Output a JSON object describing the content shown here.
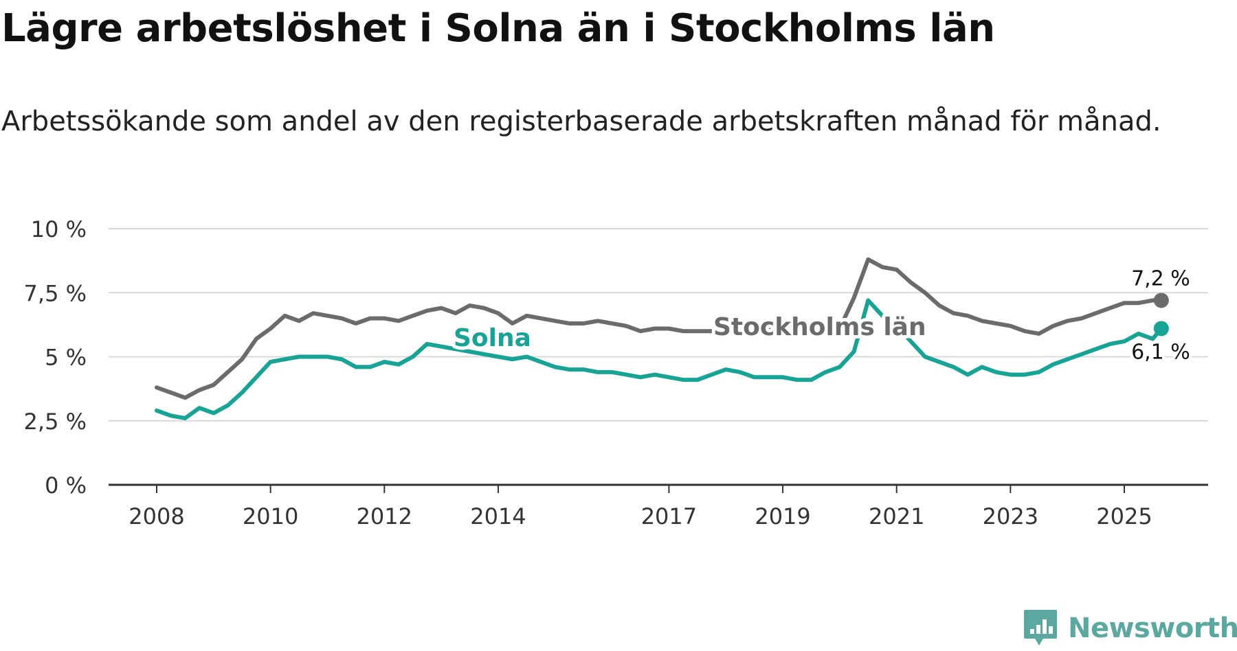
{
  "title": "Lägre arbetslöshet i Solna än i Stockholms län",
  "subtitle": "Arbetssökande som andel av den registerbaserade arbetskraften månad för månad.",
  "brand": {
    "name": "Newsworthy",
    "icon": "newsworthy-logo-icon",
    "color": "#5aa8a0"
  },
  "chart_data": {
    "type": "line",
    "title": "Lägre arbetslöshet i Solna än i Stockholms län",
    "subtitle": "Arbetssökande som andel av den registerbaserade arbetskraften månad för månad.",
    "xlabel": "",
    "ylabel": "",
    "xlim": [
      2007.9,
      2026.5
    ],
    "ylim": [
      0,
      10
    ],
    "grid": true,
    "x_ticks": [
      2008,
      2010,
      2012,
      2014,
      2017,
      2019,
      2021,
      2023,
      2025
    ],
    "x_tick_labels": [
      "2008",
      "2010",
      "2012",
      "2014",
      "2017",
      "2019",
      "2021",
      "2023",
      "2025"
    ],
    "y_ticks": [
      0,
      2.5,
      5,
      7.5,
      10
    ],
    "y_tick_labels": [
      "0 %",
      "2,5 %",
      "5 %",
      "7,5 %",
      "10 %"
    ],
    "series": [
      {
        "name": "Stockholms län",
        "color": "#6b6b6d",
        "end_label": "7,2 %",
        "x": [
          2008.0,
          2008.25,
          2008.5,
          2008.75,
          2009.0,
          2009.25,
          2009.5,
          2009.75,
          2010.0,
          2010.25,
          2010.5,
          2010.75,
          2011.0,
          2011.25,
          2011.5,
          2011.75,
          2012.0,
          2012.25,
          2012.5,
          2012.75,
          2013.0,
          2013.25,
          2013.5,
          2013.75,
          2014.0,
          2014.25,
          2014.5,
          2014.75,
          2015.0,
          2015.25,
          2015.5,
          2015.75,
          2016.0,
          2016.25,
          2016.5,
          2016.75,
          2017.0,
          2017.25,
          2017.5,
          2017.75,
          2018.0,
          2018.25,
          2018.5,
          2018.75,
          2019.0,
          2019.25,
          2019.5,
          2019.75,
          2020.0,
          2020.25,
          2020.5,
          2020.75,
          2021.0,
          2021.25,
          2021.5,
          2021.75,
          2022.0,
          2022.25,
          2022.5,
          2022.75,
          2023.0,
          2023.25,
          2023.5,
          2023.75,
          2024.0,
          2024.25,
          2024.5,
          2024.75,
          2025.0,
          2025.25,
          2025.5,
          2025.65
        ],
        "values": [
          3.8,
          3.6,
          3.4,
          3.7,
          3.9,
          4.4,
          4.9,
          5.7,
          6.1,
          6.6,
          6.4,
          6.7,
          6.6,
          6.5,
          6.3,
          6.5,
          6.5,
          6.4,
          6.6,
          6.8,
          6.9,
          6.7,
          7.0,
          6.9,
          6.7,
          6.3,
          6.6,
          6.5,
          6.4,
          6.3,
          6.3,
          6.4,
          6.3,
          6.2,
          6.0,
          6.1,
          6.1,
          6.0,
          6.0,
          6.0,
          6.1,
          6.1,
          6.1,
          6.1,
          6.1,
          6.1,
          6.1,
          6.1,
          6.1,
          7.3,
          8.8,
          8.5,
          8.4,
          7.9,
          7.5,
          7.0,
          6.7,
          6.6,
          6.4,
          6.3,
          6.2,
          6.0,
          5.9,
          6.2,
          6.4,
          6.5,
          6.7,
          6.9,
          7.1,
          7.1,
          7.2,
          7.2
        ]
      },
      {
        "name": "Solna",
        "color": "#17a396",
        "end_label": "6,1 %",
        "x": [
          2008.0,
          2008.25,
          2008.5,
          2008.75,
          2009.0,
          2009.25,
          2009.5,
          2009.75,
          2010.0,
          2010.25,
          2010.5,
          2010.75,
          2011.0,
          2011.25,
          2011.5,
          2011.75,
          2012.0,
          2012.25,
          2012.5,
          2012.75,
          2013.0,
          2013.25,
          2013.5,
          2013.75,
          2014.0,
          2014.25,
          2014.5,
          2014.75,
          2015.0,
          2015.25,
          2015.5,
          2015.75,
          2016.0,
          2016.25,
          2016.5,
          2016.75,
          2017.0,
          2017.25,
          2017.5,
          2017.75,
          2018.0,
          2018.25,
          2018.5,
          2018.75,
          2019.0,
          2019.25,
          2019.5,
          2019.75,
          2020.0,
          2020.25,
          2020.5,
          2020.75,
          2021.0,
          2021.25,
          2021.5,
          2021.75,
          2022.0,
          2022.25,
          2022.5,
          2022.75,
          2023.0,
          2023.25,
          2023.5,
          2023.75,
          2024.0,
          2024.25,
          2024.5,
          2024.75,
          2025.0,
          2025.25,
          2025.5,
          2025.65
        ],
        "values": [
          2.9,
          2.7,
          2.6,
          3.0,
          2.8,
          3.1,
          3.6,
          4.2,
          4.8,
          4.9,
          5.0,
          5.0,
          5.0,
          4.9,
          4.6,
          4.6,
          4.8,
          4.7,
          5.0,
          5.5,
          5.4,
          5.3,
          5.2,
          5.1,
          5.0,
          4.9,
          5.0,
          4.8,
          4.6,
          4.5,
          4.5,
          4.4,
          4.4,
          4.3,
          4.2,
          4.3,
          4.2,
          4.1,
          4.1,
          4.3,
          4.5,
          4.4,
          4.2,
          4.2,
          4.2,
          4.1,
          4.1,
          4.4,
          4.6,
          5.2,
          7.2,
          6.6,
          6.2,
          5.6,
          5.0,
          4.8,
          4.6,
          4.3,
          4.6,
          4.4,
          4.3,
          4.3,
          4.4,
          4.7,
          4.9,
          5.1,
          5.3,
          5.5,
          5.6,
          5.9,
          5.7,
          6.1
        ]
      }
    ],
    "annotations": [
      {
        "text": "Stockholms län",
        "series": "Stockholms län",
        "x": 2019.7,
        "y": 6.1
      },
      {
        "text": "Solna",
        "series": "Solna",
        "x": 2013.5,
        "y": 5.6
      }
    ]
  }
}
